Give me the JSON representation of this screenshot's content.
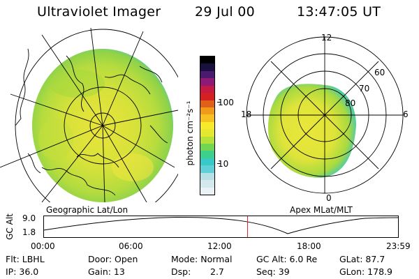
{
  "header": {
    "title": "Ultraviolet Imager",
    "date": "29 Jul 00",
    "time": "13:47:05 UT"
  },
  "left_panel": {
    "caption": "Geographic Lat/Lon"
  },
  "right_panel": {
    "caption": "Apex MLat/MLT",
    "mlt_labels": [
      "12",
      "18",
      "6",
      "0"
    ],
    "mlat_labels": [
      "60",
      "70",
      "80"
    ]
  },
  "colorbar": {
    "unit_label": "photon cm⁻²s⁻¹",
    "tick_labels": [
      "100",
      "10"
    ],
    "colors": [
      "#eaf2f5",
      "#d4e8ee",
      "#b6e0e6",
      "#5fd0d8",
      "#37c8c8",
      "#3cd08a",
      "#72d652",
      "#b4e23a",
      "#e4e82e",
      "#f8ea2a",
      "#f6c020",
      "#f09a1a",
      "#e06018",
      "#d42020",
      "#c41a44",
      "#8e1a78",
      "#4a1a6e",
      "#1a1040",
      "#000000"
    ]
  },
  "timeline": {
    "axis_label": "GC Alt",
    "y_ticks": [
      "9.0",
      "1.8"
    ],
    "x_ticks": [
      "00:00",
      "06:00",
      "12:00",
      "18:00",
      "23:59"
    ],
    "marker_color": "#e02020",
    "marker_hour": 13.78
  },
  "info": {
    "flt": "Flt: LBHL",
    "ip": "IP: 36.0",
    "door": "Door: Open",
    "gain": "Gain: 13",
    "mode": "Mode: Normal",
    "dsp_label": "Dsp:",
    "dsp_value": "2.7",
    "gc_alt": "GC Alt: 6.0 Re",
    "seq": "Seq: 39",
    "glat": "GLat:  87.7",
    "glon": "GLon: 178.9"
  }
}
